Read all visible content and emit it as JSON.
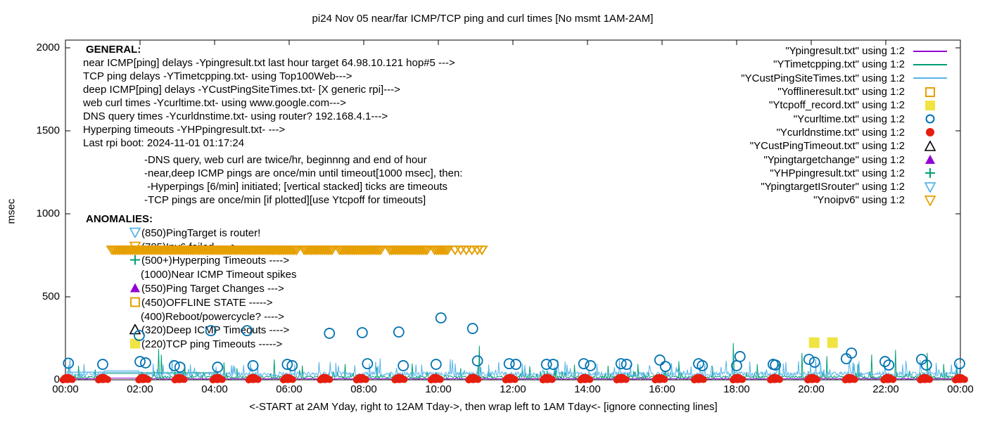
{
  "title": "pi24 Nov 05  near/far ICMP/TCP ping and curl times [No msmt 1AM-2AM]",
  "axes": {
    "ylabel": "msec",
    "xlabel": "<-START at 2AM Yday, right to 12AM Tday->, then wrap left to 1AM Tday<- [ignore connecting lines]",
    "y_ticks": [
      "0",
      "500",
      "1000",
      "1500",
      "2000"
    ],
    "y_tick_values": [
      0,
      500,
      1000,
      1500,
      2000
    ],
    "x_ticks": [
      "00:00",
      "02:00",
      "04:00",
      "06:00",
      "08:00",
      "10:00",
      "12:00",
      "14:00",
      "16:00",
      "18:00",
      "20:00",
      "22:00",
      "00:00"
    ],
    "x_range_hours": [
      0,
      24
    ],
    "y_range_msec": [
      0,
      2000
    ],
    "grid": "off"
  },
  "general": {
    "heading": "GENERAL:",
    "lines": [
      "near ICMP[ping] delays -Ypingresult.txt last hour target 64.98.10.121 hop#5 --->",
      "TCP ping delays -YTimetcpping.txt- using Top100Web--->",
      "deep ICMP[ping] delays -YCustPingSiteTimes.txt- [X generic rpi]--->",
      "web curl times -Ycurltime.txt- using www.google.com--->",
      "DNS query times -Ycurldnstime.txt- using router? 192.168.4.1--->",
      "Hyperping timeouts -YHPpingresult.txt- --->",
      "Last rpi boot: 2024-11-01 01:17:24"
    ],
    "sub_lines": [
      "-DNS query, web curl are twice/hr, beginnng and end of hour",
      "-near,deep ICMP pings are once/min until timeout[1000 msec], then:",
      " -Hyperpings [6/min] initiated; [vertical stacked] ticks are timeouts",
      "-TCP pings are once/min [if plotted][use Ytcpoff for timeouts]"
    ]
  },
  "anomalies": {
    "heading": "ANOMALIES:",
    "lines": [
      {
        "marker": "tri-down-open",
        "color": "#56B4E9",
        "text": "(850)PingTarget is router!"
      },
      {
        "marker": "tri-down-open",
        "color": "#E69F00",
        "text": "(785)Ipv6 failed ---->"
      },
      {
        "marker": "plus",
        "color": "#009E73",
        "text": "(500+)Hyperping Timeouts ---->"
      },
      {
        "marker": "none",
        "color": "",
        "text": "(1000)Near ICMP Timeout spikes"
      },
      {
        "marker": "tri-up-filled",
        "color": "#9400D3",
        "text": "(550)Ping Target Changes --->"
      },
      {
        "marker": "square-open",
        "color": "#E69F00",
        "text": "(450)OFFLINE STATE ----->"
      },
      {
        "marker": "none",
        "color": "",
        "text": "(400)Reboot/powercycle? ---->"
      },
      {
        "marker": "tri-up-open",
        "color": "#000000",
        "text": "(320)Deep ICMP Timeouts ---->"
      },
      {
        "marker": "square-filled",
        "color": "#F0E442",
        "text": "(220)TCP ping Timeouts ----->"
      }
    ]
  },
  "legend": {
    "entries": [
      {
        "label": "\"Ypingresult.txt\" using 1:2",
        "marker": "line",
        "color": "#9400D3"
      },
      {
        "label": "\"YTimetcpping.txt\" using 1:2",
        "marker": "line",
        "color": "#009E73"
      },
      {
        "label": "\"YCustPingSiteTimes.txt\" using 1:2",
        "marker": "line",
        "color": "#56B4E9"
      },
      {
        "label": "\"Yofflineresult.txt\" using 1:2",
        "marker": "square-open",
        "color": "#E69F00"
      },
      {
        "label": "\"Ytcpoff_record.txt\" using 1:2",
        "marker": "square-filled",
        "color": "#F0E442"
      },
      {
        "label": "\"Ycurltime.txt\" using 1:2",
        "marker": "circle-open",
        "color": "#0072B2"
      },
      {
        "label": "\"Ycurldnstime.txt\" using 1:2",
        "marker": "circle-filled",
        "color": "#E51E10"
      },
      {
        "label": "\"YCustPingTimeout.txt\" using 1:2",
        "marker": "tri-up-open",
        "color": "#000000"
      },
      {
        "label": "\"Ypingtargetchange\" using 1:2",
        "marker": "tri-up-filled",
        "color": "#9400D3"
      },
      {
        "label": "\"YHPpingresult.txt\" using 1:2",
        "marker": "plus",
        "color": "#009E73"
      },
      {
        "label": "\"YpingtargetISrouter\" using 1:2",
        "marker": "tri-down-open",
        "color": "#56B4E9"
      },
      {
        "label": "\"Ynoipv6\" using 1:2",
        "marker": "tri-down-open",
        "color": "#E69F00"
      }
    ]
  },
  "chart_data": {
    "type": "line",
    "x_unit": "hours_0_to_24",
    "y_unit": "msec",
    "no_measurement_window_hours": [
      1.0,
      2.0
    ],
    "series": [
      {
        "name": "Ypingresult.txt",
        "style": "noisy-line",
        "color": "#9400D3",
        "baseline": 10,
        "noise": 3,
        "gap_value": 10,
        "seed": 7,
        "spikes": [],
        "flat_segments": []
      },
      {
        "name": "YTimetcpping.txt",
        "style": "noisy-line",
        "color": "#009E73",
        "baseline": 22,
        "noise": 14,
        "gap_value": 38,
        "seed": 13,
        "spikes": [
          [
            0.35,
            85
          ],
          [
            0.8,
            62
          ],
          [
            2.5,
            185
          ],
          [
            2.57,
            152
          ],
          [
            3.2,
            95
          ],
          [
            4.25,
            105
          ],
          [
            4.6,
            70
          ],
          [
            5.6,
            122
          ],
          [
            6.35,
            85
          ],
          [
            7.5,
            95
          ],
          [
            8.35,
            75
          ],
          [
            9.3,
            98
          ],
          [
            10.6,
            70
          ],
          [
            11.1,
            205
          ],
          [
            12.45,
            82
          ],
          [
            13.15,
            72
          ],
          [
            13.65,
            92
          ],
          [
            14.55,
            85
          ],
          [
            15.35,
            95
          ],
          [
            16.45,
            112
          ],
          [
            17.35,
            82
          ],
          [
            17.91,
            222
          ],
          [
            18.55,
            95
          ],
          [
            19.15,
            105
          ],
          [
            19.75,
            162
          ],
          [
            20.42,
            142
          ],
          [
            21.25,
            95
          ],
          [
            21.62,
            152
          ],
          [
            22.26,
            180
          ],
          [
            23.11,
            162
          ],
          [
            23.55,
            95
          ],
          [
            23.9,
            75
          ]
        ],
        "flat_segments": [
          [
            2.08,
            4.1,
            42
          ]
        ]
      },
      {
        "name": "YCustPingSiteTimes.txt",
        "style": "noisy-line",
        "color": "#56B4E9",
        "baseline": 45,
        "noise": 28,
        "gap_value": 55,
        "seed": 29,
        "spikes": [
          [
            0.12,
            132
          ],
          [
            0.5,
            95
          ],
          [
            2.35,
            98
          ],
          [
            3.35,
            92
          ],
          [
            4.45,
            88
          ],
          [
            5.15,
            98
          ],
          [
            6.15,
            92
          ],
          [
            7.25,
            102
          ],
          [
            8.15,
            98
          ],
          [
            9.55,
            92
          ],
          [
            10.45,
            98
          ],
          [
            11.35,
            92
          ],
          [
            12.25,
            98
          ],
          [
            13.45,
            92
          ],
          [
            14.25,
            98
          ],
          [
            15.15,
            92
          ],
          [
            16.25,
            102
          ],
          [
            17.15,
            98
          ],
          [
            18.35,
            112
          ],
          [
            19.25,
            98
          ],
          [
            20.25,
            102
          ],
          [
            21.15,
            98
          ],
          [
            22.45,
            92
          ],
          [
            23.35,
            102
          ]
        ],
        "flat_segments": [
          [
            0.02,
            2.05,
            46
          ]
        ]
      },
      {
        "name": "Yofflineresult.txt",
        "style": "square-open",
        "color": "#E69F00",
        "points": []
      },
      {
        "name": "Ytcpoff_record.txt",
        "style": "square-filled",
        "color": "#F0E442",
        "points": [
          [
            20.08,
            224
          ],
          [
            20.57,
            224
          ]
        ]
      },
      {
        "name": "Ycurltime.txt",
        "style": "circle-open",
        "color": "#0072B2",
        "points": [
          [
            0.08,
            100
          ],
          [
            1.0,
            93
          ],
          [
            1.98,
            267
          ],
          [
            2.0,
            110
          ],
          [
            2.15,
            102
          ],
          [
            2.92,
            85
          ],
          [
            3.07,
            76
          ],
          [
            3.9,
            296
          ],
          [
            4.08,
            76
          ],
          [
            4.87,
            296
          ],
          [
            5.03,
            85
          ],
          [
            5.95,
            93
          ],
          [
            6.08,
            85
          ],
          [
            7.08,
            280
          ],
          [
            7.96,
            284
          ],
          [
            8.1,
            97
          ],
          [
            8.94,
            288
          ],
          [
            9.06,
            85
          ],
          [
            9.94,
            93
          ],
          [
            10.07,
            373
          ],
          [
            10.92,
            309
          ],
          [
            11.05,
            114
          ],
          [
            11.9,
            97
          ],
          [
            12.08,
            93
          ],
          [
            12.9,
            93
          ],
          [
            13.08,
            93
          ],
          [
            13.9,
            97
          ],
          [
            14.08,
            85
          ],
          [
            14.9,
            97
          ],
          [
            15.05,
            93
          ],
          [
            15.94,
            119
          ],
          [
            16.09,
            80
          ],
          [
            16.98,
            97
          ],
          [
            17.08,
            85
          ],
          [
            18.0,
            85
          ],
          [
            18.09,
            140
          ],
          [
            18.98,
            93
          ],
          [
            19.04,
            89
          ],
          [
            19.94,
            123
          ],
          [
            20.09,
            106
          ],
          [
            20.94,
            127
          ],
          [
            21.08,
            161
          ],
          [
            21.98,
            110
          ],
          [
            22.08,
            89
          ],
          [
            22.96,
            123
          ],
          [
            23.09,
            89
          ],
          [
            23.98,
            97
          ]
        ]
      },
      {
        "name": "Ycurldnstime.txt",
        "style": "dot-cluster",
        "color": "#E51E10",
        "value": 8,
        "times": [
          0.05,
          1.0,
          2.08,
          3.05,
          4.07,
          5.03,
          5.96,
          6.95,
          7.92,
          8.95,
          9.92,
          10.93,
          11.92,
          12.92,
          13.93,
          14.9,
          15.93,
          16.98,
          18.02,
          19.02,
          20.02,
          21.03,
          22.06,
          23.04,
          23.98
        ]
      },
      {
        "name": "YCustPingTimeout.txt",
        "style": "tri-up-open",
        "color": "#000000",
        "points": []
      },
      {
        "name": "Ypingtargetchange",
        "style": "tri-up-filled",
        "color": "#9400D3",
        "points": []
      },
      {
        "name": "YHPpingresult.txt",
        "style": "plus",
        "color": "#009E73",
        "points": []
      },
      {
        "name": "YpingtargetISrouter",
        "style": "tri-down-open",
        "color": "#56B4E9",
        "points": []
      },
      {
        "name": "Ynoipv6",
        "style": "tri-down-band",
        "color": "#E69F00",
        "value": 785,
        "segments": [
          [
            1.25,
            6.2
          ],
          [
            6.4,
            7.15
          ],
          [
            7.35,
            8.5
          ],
          [
            8.7,
            9.75
          ],
          [
            9.9,
            10.3
          ]
        ],
        "singles": [
          10.45,
          10.6,
          10.75,
          10.9,
          11.05,
          11.17
        ],
        "spacing": 0.05
      }
    ]
  }
}
